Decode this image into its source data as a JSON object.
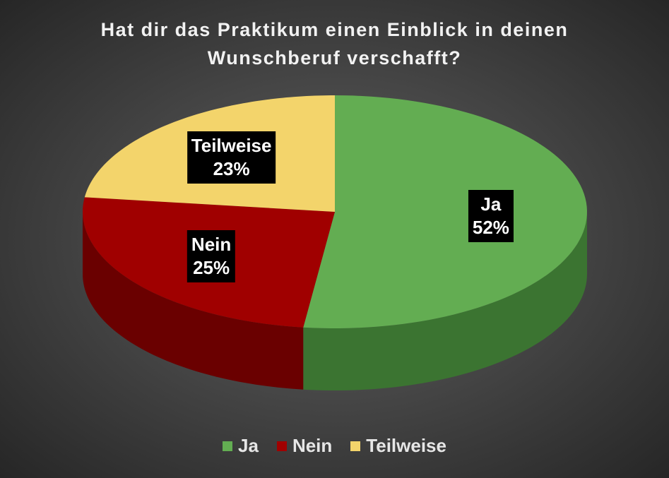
{
  "chart_data": {
    "type": "pie",
    "title_lines": [
      "Hat dir das Praktikum einen Einblick in deinen",
      "Wunschberuf verschafft?"
    ],
    "categories": [
      "Ja",
      "Nein",
      "Teilweise"
    ],
    "values": [
      52,
      25,
      23
    ],
    "data_labels": [
      "52%",
      "25%",
      "23%"
    ],
    "colors": [
      "#63ad52",
      "#a00000",
      "#f3d46b"
    ],
    "side_colors": [
      "#3b7431",
      "#6a0000",
      "#a8914a"
    ],
    "legend_position": "bottom",
    "style": "3d"
  }
}
